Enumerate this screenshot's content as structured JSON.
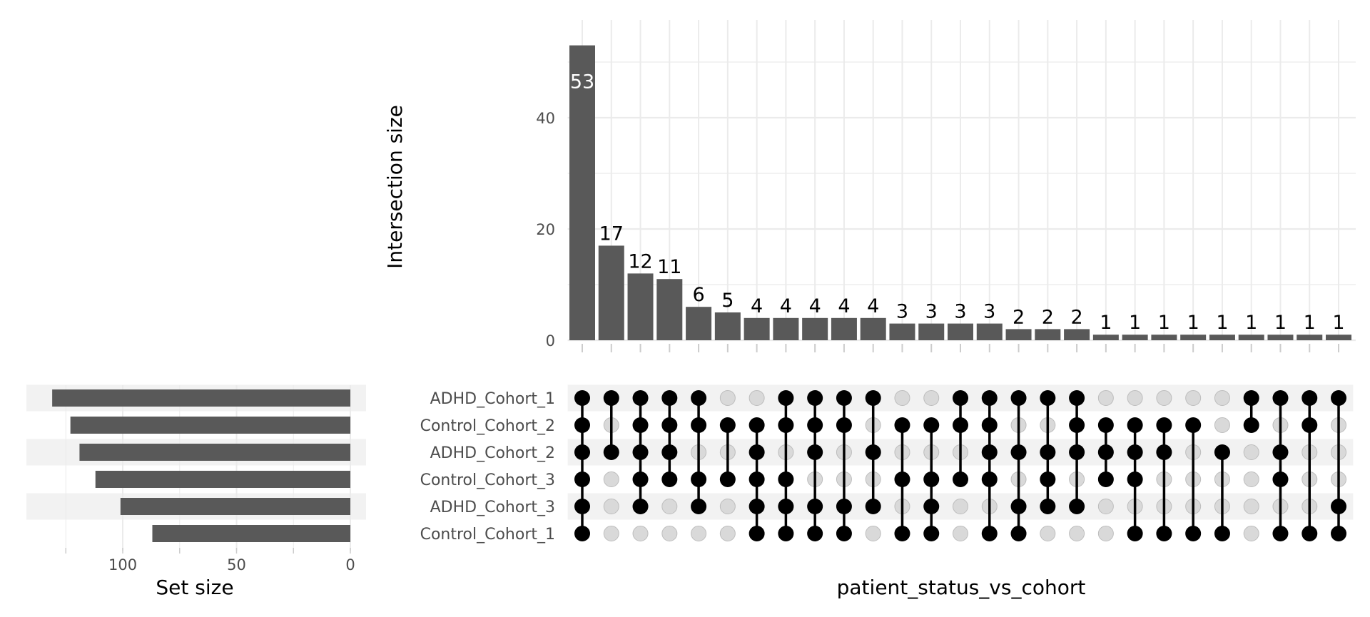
{
  "chart_data": {
    "type": "bar",
    "subtype": "upset",
    "sets": [
      "ADHD_Cohort_1",
      "Control_Cohort_2",
      "ADHD_Cohort_2",
      "Control_Cohort_3",
      "ADHD_Cohort_3",
      "Control_Cohort_1"
    ],
    "intersections": [
      {
        "size": 53,
        "members": [
          "ADHD_Cohort_1",
          "Control_Cohort_2",
          "ADHD_Cohort_2",
          "Control_Cohort_3",
          "ADHD_Cohort_3",
          "Control_Cohort_1"
        ]
      },
      {
        "size": 17,
        "members": [
          "ADHD_Cohort_1",
          "ADHD_Cohort_2"
        ]
      },
      {
        "size": 12,
        "members": [
          "ADHD_Cohort_1",
          "Control_Cohort_2",
          "ADHD_Cohort_2",
          "Control_Cohort_3",
          "ADHD_Cohort_3"
        ]
      },
      {
        "size": 11,
        "members": [
          "ADHD_Cohort_1",
          "Control_Cohort_2",
          "ADHD_Cohort_2",
          "Control_Cohort_3"
        ]
      },
      {
        "size": 6,
        "members": [
          "ADHD_Cohort_1",
          "Control_Cohort_2",
          "Control_Cohort_3",
          "ADHD_Cohort_3"
        ]
      },
      {
        "size": 5,
        "members": [
          "Control_Cohort_2",
          "Control_Cohort_3"
        ]
      },
      {
        "size": 4,
        "members": [
          "Control_Cohort_2",
          "ADHD_Cohort_2",
          "Control_Cohort_3",
          "ADHD_Cohort_3",
          "Control_Cohort_1"
        ]
      },
      {
        "size": 4,
        "members": [
          "ADHD_Cohort_1",
          "Control_Cohort_2",
          "Control_Cohort_3",
          "ADHD_Cohort_3",
          "Control_Cohort_1"
        ]
      },
      {
        "size": 4,
        "members": [
          "ADHD_Cohort_1",
          "Control_Cohort_2",
          "ADHD_Cohort_2",
          "ADHD_Cohort_3",
          "Control_Cohort_1"
        ]
      },
      {
        "size": 4,
        "members": [
          "ADHD_Cohort_1",
          "Control_Cohort_2",
          "ADHD_Cohort_3",
          "Control_Cohort_1"
        ]
      },
      {
        "size": 4,
        "members": [
          "ADHD_Cohort_1",
          "ADHD_Cohort_2",
          "ADHD_Cohort_3"
        ]
      },
      {
        "size": 3,
        "members": [
          "Control_Cohort_2",
          "Control_Cohort_3",
          "Control_Cohort_1"
        ]
      },
      {
        "size": 3,
        "members": [
          "Control_Cohort_2",
          "Control_Cohort_3",
          "ADHD_Cohort_3",
          "Control_Cohort_1"
        ]
      },
      {
        "size": 3,
        "members": [
          "ADHD_Cohort_1",
          "Control_Cohort_2",
          "Control_Cohort_3"
        ]
      },
      {
        "size": 3,
        "members": [
          "ADHD_Cohort_1",
          "Control_Cohort_2",
          "ADHD_Cohort_2",
          "Control_Cohort_3",
          "Control_Cohort_1"
        ]
      },
      {
        "size": 2,
        "members": [
          "ADHD_Cohort_1",
          "ADHD_Cohort_2",
          "ADHD_Cohort_3",
          "Control_Cohort_1"
        ]
      },
      {
        "size": 2,
        "members": [
          "ADHD_Cohort_1",
          "ADHD_Cohort_2",
          "Control_Cohort_3",
          "ADHD_Cohort_3"
        ]
      },
      {
        "size": 2,
        "members": [
          "ADHD_Cohort_1",
          "Control_Cohort_2",
          "ADHD_Cohort_2",
          "ADHD_Cohort_3"
        ]
      },
      {
        "size": 1,
        "members": [
          "Control_Cohort_2",
          "ADHD_Cohort_2",
          "Control_Cohort_3"
        ]
      },
      {
        "size": 1,
        "members": [
          "Control_Cohort_2",
          "ADHD_Cohort_2",
          "Control_Cohort_3",
          "Control_Cohort_1"
        ]
      },
      {
        "size": 1,
        "members": [
          "Control_Cohort_2",
          "ADHD_Cohort_2",
          "Control_Cohort_1"
        ]
      },
      {
        "size": 1,
        "members": [
          "Control_Cohort_2",
          "Control_Cohort_1"
        ]
      },
      {
        "size": 1,
        "members": [
          "ADHD_Cohort_2",
          "Control_Cohort_1"
        ]
      },
      {
        "size": 1,
        "members": [
          "ADHD_Cohort_1",
          "Control_Cohort_2"
        ]
      },
      {
        "size": 1,
        "members": [
          "ADHD_Cohort_1",
          "ADHD_Cohort_2",
          "Control_Cohort_3",
          "Control_Cohort_1"
        ]
      },
      {
        "size": 1,
        "members": [
          "ADHD_Cohort_1",
          "Control_Cohort_2",
          "Control_Cohort_1"
        ]
      },
      {
        "size": 1,
        "members": [
          "ADHD_Cohort_1",
          "ADHD_Cohort_3",
          "Control_Cohort_1"
        ]
      }
    ],
    "set_sizes": [
      {
        "set": "ADHD_Cohort_1",
        "size": 131
      },
      {
        "set": "Control_Cohort_2",
        "size": 123
      },
      {
        "set": "ADHD_Cohort_2",
        "size": 119
      },
      {
        "set": "Control_Cohort_3",
        "size": 112
      },
      {
        "set": "ADHD_Cohort_3",
        "size": 101
      },
      {
        "set": "Control_Cohort_1",
        "size": 87
      }
    ],
    "intersection_axis": {
      "label": "Intersection size",
      "ticks": [
        0,
        20,
        40
      ],
      "ylim": [
        0,
        55
      ]
    },
    "set_axis": {
      "label": "Set size",
      "ticks": [
        100,
        50,
        0
      ],
      "xlim": [
        0,
        137
      ],
      "reversed": true
    },
    "matrix_axis": {
      "label": "patient_status_vs_cohort"
    },
    "grid": true,
    "colors": {
      "bar": "#595959",
      "dot_active": "#000000",
      "dot_inactive": "#d9d9d9",
      "dot_inactive_border": "#bdbdbd",
      "stripe": "#f2f2f2",
      "grid": "#ebebeb",
      "label_inside": "#ffffff",
      "label_outside": "#000000"
    }
  }
}
